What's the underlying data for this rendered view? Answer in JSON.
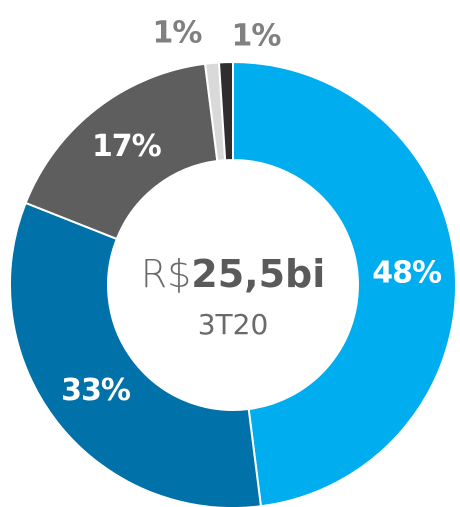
{
  "chart_data": {
    "type": "donut",
    "categories": [
      "48%",
      "33%",
      "17%",
      "1%",
      "1%"
    ],
    "values": [
      48,
      33,
      17,
      1,
      1
    ],
    "colors": [
      "#00adef",
      "#0071a9",
      "#5e5e5e",
      "#d9d9d9",
      "#2e2e2e"
    ],
    "center_prefix": "R$",
    "center_value": "25,5bi",
    "center_subtitle": "3T20"
  }
}
